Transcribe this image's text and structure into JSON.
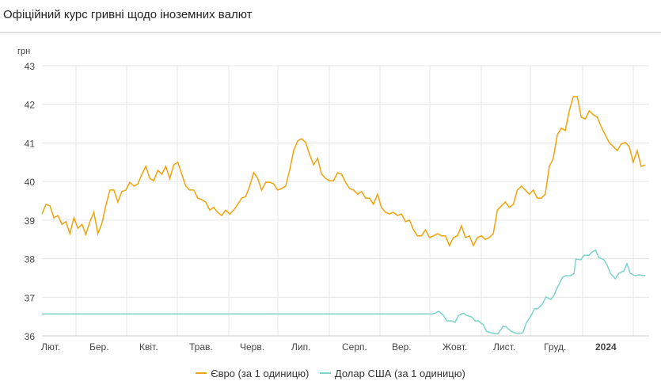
{
  "title": "Офіційний курс гривні щодо іноземних валют",
  "chart_data": {
    "type": "line",
    "ylabel": "грн",
    "ylim": [
      36,
      43
    ],
    "yticks": [
      "36",
      "37",
      "38",
      "39",
      "40",
      "41",
      "42",
      "43"
    ],
    "xticks": [
      "Лют.",
      "Бер.",
      "Квіт.",
      "Трав.",
      "Черв.",
      "Лип.",
      "Серп.",
      "Вер.",
      "Жовт.",
      "Лист.",
      "Груд.",
      "2024"
    ],
    "xlim_days": [
      0,
      365
    ],
    "grid": true,
    "legend_position": "bottom",
    "series": [
      {
        "name": "Євро (за 1 одиницю)",
        "color": "#f0a30a",
        "values": [
          39.16,
          39.41,
          39.37,
          39.06,
          39.12,
          38.89,
          38.96,
          38.65,
          39.06,
          38.79,
          38.89,
          38.63,
          38.96,
          39.2,
          38.65,
          38.91,
          39.37,
          39.78,
          39.78,
          39.47,
          39.74,
          39.78,
          39.98,
          39.88,
          39.94,
          40.19,
          40.39,
          40.08,
          40.02,
          40.29,
          40.19,
          40.39,
          40.08,
          40.43,
          40.5,
          40.19,
          39.88,
          39.78,
          39.78,
          39.57,
          39.53,
          39.47,
          39.26,
          39.33,
          39.2,
          39.12,
          39.26,
          39.16,
          39.26,
          39.41,
          39.57,
          39.61,
          39.88,
          40.23,
          40.08,
          39.78,
          39.98,
          39.98,
          39.94,
          39.78,
          39.82,
          39.88,
          40.29,
          40.8,
          41.05,
          41.11,
          41.01,
          40.7,
          40.43,
          40.6,
          40.19,
          40.08,
          40.02,
          40.02,
          40.23,
          40.19,
          39.98,
          39.82,
          39.78,
          39.67,
          39.74,
          39.57,
          39.57,
          39.41,
          39.67,
          39.33,
          39.2,
          39.16,
          39.2,
          39.12,
          39.16,
          38.96,
          39.0,
          38.75,
          38.59,
          38.59,
          38.75,
          38.55,
          38.59,
          38.65,
          38.59,
          38.59,
          38.34,
          38.55,
          38.59,
          38.85,
          38.55,
          38.59,
          38.34,
          38.55,
          38.59,
          38.5,
          38.55,
          38.65,
          39.26,
          39.37,
          39.47,
          39.33,
          39.41,
          39.78,
          39.88,
          39.78,
          39.67,
          39.78,
          39.57,
          39.57,
          39.67,
          40.39,
          40.6,
          41.21,
          41.38,
          41.32,
          41.83,
          42.2,
          42.2,
          41.67,
          41.62,
          41.83,
          41.73,
          41.67,
          41.42,
          41.21,
          41.01,
          40.91,
          40.8,
          40.97,
          41.01,
          40.91,
          40.5,
          40.8,
          40.39,
          40.43
        ]
      },
      {
        "name": "Долар США (за 1 одиницю)",
        "color": "#7dd3c8",
        "points": [
          [
            0,
            36.57
          ],
          [
            236,
            36.57
          ],
          [
            238,
            36.59
          ],
          [
            240,
            36.64
          ],
          [
            243,
            36.53
          ],
          [
            245,
            36.39
          ],
          [
            248,
            36.39
          ],
          [
            250,
            36.35
          ],
          [
            252,
            36.53
          ],
          [
            255,
            36.59
          ],
          [
            257,
            36.53
          ],
          [
            260,
            36.49
          ],
          [
            262,
            36.39
          ],
          [
            264,
            36.39
          ],
          [
            267,
            36.29
          ],
          [
            269,
            36.12
          ],
          [
            272,
            36.08
          ],
          [
            274,
            36.06
          ],
          [
            276,
            36.06
          ],
          [
            279,
            36.25
          ],
          [
            281,
            36.23
          ],
          [
            284,
            36.12
          ],
          [
            286,
            36.08
          ],
          [
            288,
            36.06
          ],
          [
            291,
            36.08
          ],
          [
            293,
            36.33
          ],
          [
            296,
            36.53
          ],
          [
            298,
            36.7
          ],
          [
            300,
            36.7
          ],
          [
            303,
            36.84
          ],
          [
            305,
            37.01
          ],
          [
            308,
            36.94
          ],
          [
            310,
            37.07
          ],
          [
            312,
            37.27
          ],
          [
            315,
            37.52
          ],
          [
            317,
            37.56
          ],
          [
            320,
            37.56
          ],
          [
            322,
            37.62
          ],
          [
            323,
            37.99
          ],
          [
            326,
            37.97
          ],
          [
            328,
            38.09
          ],
          [
            331,
            38.09
          ],
          [
            333,
            38.18
          ],
          [
            335,
            38.22
          ],
          [
            337,
            38.03
          ],
          [
            340,
            37.97
          ],
          [
            342,
            37.83
          ],
          [
            344,
            37.62
          ],
          [
            347,
            37.48
          ],
          [
            349,
            37.62
          ],
          [
            352,
            37.68
          ],
          [
            354,
            37.87
          ],
          [
            356,
            37.62
          ],
          [
            359,
            37.56
          ],
          [
            361,
            37.58
          ],
          [
            365,
            37.56
          ]
        ]
      }
    ]
  }
}
